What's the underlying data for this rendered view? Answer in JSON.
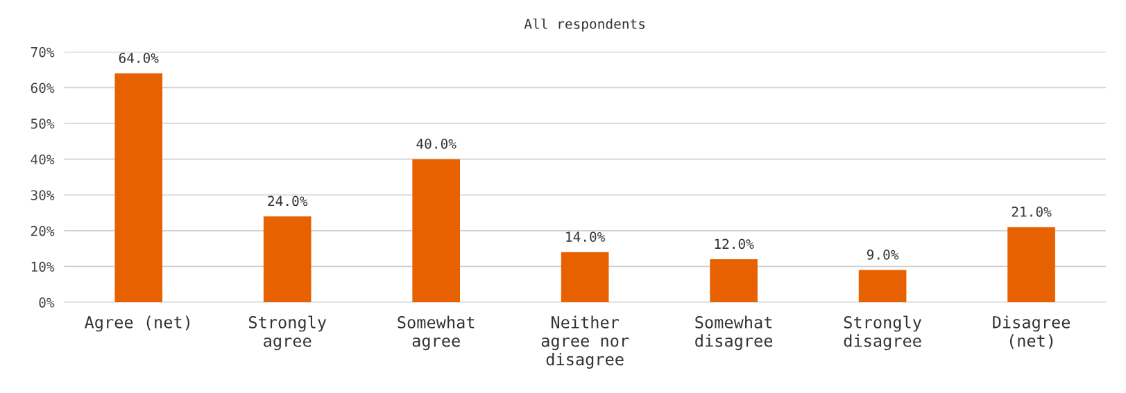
{
  "chart_data": {
    "type": "bar",
    "title": "All respondents",
    "categories": [
      "Agree (net)",
      "Strongly\nagree",
      "Somewhat\nagree",
      "Neither\nagree nor\ndisagree",
      "Somewhat\ndisagree",
      "Strongly\ndisagree",
      "Disagree\n(net)"
    ],
    "values": [
      64.0,
      24.0,
      40.0,
      14.0,
      12.0,
      9.0,
      21.0
    ],
    "value_labels": [
      "64.0%",
      "24.0%",
      "40.0%",
      "14.0%",
      "12.0%",
      "9.0%",
      "21.0%"
    ],
    "color": "#e86100",
    "ylim": [
      0,
      70
    ],
    "yticks": [
      {
        "value": 0,
        "label": "0%"
      },
      {
        "value": 10,
        "label": "10%"
      },
      {
        "value": 20,
        "label": "20%"
      },
      {
        "value": 30,
        "label": "30%"
      },
      {
        "value": 40,
        "label": "40%"
      },
      {
        "value": 50,
        "label": "50%"
      },
      {
        "value": 60,
        "label": "60%"
      },
      {
        "value": 70,
        "label": "70%"
      }
    ],
    "grid": "y"
  }
}
